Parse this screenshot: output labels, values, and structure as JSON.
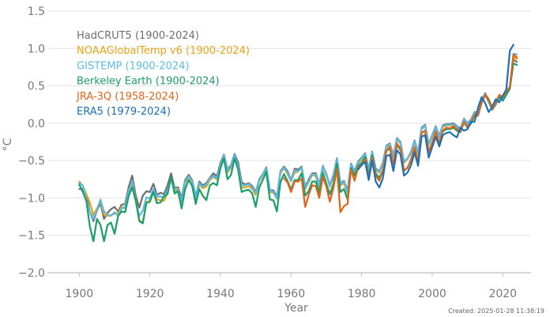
{
  "chart_data": {
    "type": "line",
    "title": "",
    "xlabel": "Year",
    "ylabel": "°C",
    "xlim": [
      1895,
      2028
    ],
    "ylim": [
      -2.0,
      1.5
    ],
    "x_ticks": [
      "1900",
      "1920",
      "1940",
      "1960",
      "1980",
      "2000",
      "2020"
    ],
    "y_ticks": [
      "1.5",
      "1.0",
      "0.5",
      "0.0",
      "−0.5",
      "−1.0",
      "−1.5",
      "−2.0"
    ],
    "grid": "horizontal",
    "legend_position": "top-left",
    "footer": "Created: 2025-01-28 11:38:19",
    "series": [
      {
        "name": "HadCRUT5 (1900-2024)",
        "color": "#6e6e6e",
        "x_start": 1900,
        "values": [
          -0.88,
          -0.88,
          -0.96,
          -1.18,
          -1.31,
          -1.17,
          -1.07,
          -1.28,
          -1.2,
          -1.15,
          -1.12,
          -1.18,
          -1.09,
          -1.08,
          -0.85,
          -0.7,
          -0.97,
          -1.13,
          -0.97,
          -0.91,
          -0.92,
          -0.81,
          -0.96,
          -0.93,
          -0.95,
          -0.83,
          -0.67,
          -0.86,
          -0.86,
          -1.0,
          -0.76,
          -0.69,
          -0.76,
          -0.98,
          -0.78,
          -0.83,
          -0.8,
          -0.73,
          -0.67,
          -0.71,
          -0.53,
          -0.42,
          -0.62,
          -0.56,
          -0.41,
          -0.52,
          -0.79,
          -0.82,
          -0.8,
          -0.84,
          -0.92,
          -0.75,
          -0.68,
          -0.59,
          -0.89,
          -0.9,
          -0.98,
          -0.64,
          -0.58,
          -0.64,
          -0.76,
          -0.61,
          -0.62,
          -0.58,
          -0.85,
          -0.75,
          -0.67,
          -0.67,
          -0.82,
          -0.57,
          -0.68,
          -0.83,
          -0.69,
          -0.47,
          -0.8,
          -0.77,
          -0.9,
          -0.54,
          -0.64,
          -0.51,
          -0.46,
          -0.4,
          -0.61,
          -0.38,
          -0.61,
          -0.64,
          -0.53,
          -0.3,
          -0.27,
          -0.43,
          -0.2,
          -0.25,
          -0.51,
          -0.47,
          -0.38,
          -0.23,
          -0.39,
          -0.06,
          -0.02,
          -0.28,
          -0.16,
          -0.04,
          -0.17,
          -0.03,
          -0.01,
          -0.01,
          0.0,
          -0.04,
          -0.07,
          0.06,
          0.0,
          0.05,
          0.15,
          0.14,
          0.3,
          0.4,
          0.32,
          0.22,
          0.28,
          0.37,
          0.33,
          0.4,
          0.48,
          0.85,
          0.82
        ]
      },
      {
        "name": "NOAAGlobalTemp v6 (1900-2024)",
        "color": "#e8a317",
        "x_start": 1900,
        "values": [
          -0.78,
          -0.84,
          -0.95,
          -1.06,
          -1.23,
          -1.14,
          -1.04,
          -1.22,
          -1.24,
          -1.23,
          -1.21,
          -1.2,
          -1.12,
          -1.14,
          -0.96,
          -0.82,
          -1.03,
          -1.3,
          -1.33,
          -1.05,
          -1.06,
          -0.91,
          -1.02,
          -1.03,
          -1.04,
          -0.93,
          -0.73,
          -0.92,
          -0.88,
          -1.05,
          -0.8,
          -0.72,
          -0.79,
          -1.05,
          -0.82,
          -0.87,
          -0.85,
          -0.76,
          -0.72,
          -0.75,
          -0.58,
          -0.44,
          -0.66,
          -0.6,
          -0.44,
          -0.58,
          -0.86,
          -0.86,
          -0.84,
          -0.88,
          -0.96,
          -0.78,
          -0.7,
          -0.62,
          -0.92,
          -0.93,
          -1.01,
          -0.67,
          -0.6,
          -0.68,
          -0.78,
          -0.66,
          -0.65,
          -0.6,
          -0.88,
          -0.79,
          -0.69,
          -0.71,
          -0.86,
          -0.59,
          -0.7,
          -0.85,
          -0.72,
          -0.5,
          -0.83,
          -0.8,
          -0.94,
          -0.57,
          -0.66,
          -0.54,
          -0.48,
          -0.42,
          -0.63,
          -0.4,
          -0.63,
          -0.66,
          -0.55,
          -0.33,
          -0.3,
          -0.45,
          -0.22,
          -0.27,
          -0.53,
          -0.48,
          -0.4,
          -0.26,
          -0.41,
          -0.08,
          -0.04,
          -0.29,
          -0.18,
          -0.06,
          -0.19,
          -0.05,
          -0.03,
          -0.03,
          -0.02,
          -0.06,
          -0.09,
          0.04,
          -0.02,
          0.03,
          0.13,
          0.12,
          0.29,
          0.38,
          0.31,
          0.2,
          0.27,
          0.36,
          0.31,
          0.39,
          0.47,
          0.88,
          0.86
        ]
      },
      {
        "name": "GISTEMP (1900-2024)",
        "color": "#5bbbe8",
        "x_start": 1900,
        "values": [
          -0.8,
          -0.83,
          -1.02,
          -1.18,
          -1.28,
          -1.16,
          -1.02,
          -1.18,
          -1.22,
          -1.24,
          -1.19,
          -1.24,
          -1.14,
          -1.12,
          -0.9,
          -0.78,
          -1.05,
          -1.24,
          -1.17,
          -0.99,
          -1.01,
          -0.88,
          -0.98,
          -0.98,
          -0.99,
          -0.89,
          -0.74,
          -0.88,
          -0.9,
          -1.03,
          -0.78,
          -0.71,
          -0.77,
          -1.0,
          -0.8,
          -0.85,
          -0.82,
          -0.74,
          -0.7,
          -0.74,
          -0.56,
          -0.43,
          -0.64,
          -0.58,
          -0.42,
          -0.57,
          -0.83,
          -0.83,
          -0.81,
          -0.86,
          -0.93,
          -0.76,
          -0.69,
          -0.6,
          -0.9,
          -0.92,
          -1.0,
          -0.65,
          -0.59,
          -0.66,
          -0.77,
          -0.63,
          -0.64,
          -0.59,
          -0.87,
          -0.77,
          -0.68,
          -0.69,
          -0.84,
          -0.58,
          -0.69,
          -0.84,
          -0.7,
          -0.48,
          -0.81,
          -0.78,
          -0.92,
          -0.55,
          -0.65,
          -0.52,
          -0.47,
          -0.41,
          -0.62,
          -0.39,
          -0.62,
          -0.65,
          -0.54,
          -0.31,
          -0.28,
          -0.44,
          -0.21,
          -0.26,
          -0.52,
          -0.47,
          -0.39,
          -0.24,
          -0.4,
          -0.07,
          -0.03,
          -0.28,
          -0.17,
          -0.05,
          -0.18,
          -0.04,
          -0.02,
          -0.02,
          -0.01,
          -0.05,
          -0.08,
          0.05,
          -0.01,
          0.04,
          0.14,
          0.13,
          0.3,
          0.39,
          0.32,
          0.21,
          0.28,
          0.37,
          0.32,
          0.4,
          0.48,
          0.93,
          0.92
        ]
      },
      {
        "name": "Berkeley Earth (1900-2024)",
        "color": "#1a9e6a",
        "x_start": 1900,
        "values": [
          -0.82,
          -0.92,
          -1.04,
          -1.38,
          -1.58,
          -1.28,
          -1.36,
          -1.58,
          -1.36,
          -1.33,
          -1.48,
          -1.24,
          -1.18,
          -1.19,
          -0.97,
          -0.86,
          -1.04,
          -1.31,
          -1.34,
          -1.07,
          -1.04,
          -0.92,
          -1.07,
          -1.06,
          -0.98,
          -0.95,
          -0.72,
          -0.94,
          -0.91,
          -1.14,
          -0.88,
          -0.76,
          -0.84,
          -1.08,
          -0.88,
          -0.97,
          -1.03,
          -0.83,
          -0.8,
          -0.83,
          -0.6,
          -0.47,
          -0.75,
          -0.69,
          -0.47,
          -0.62,
          -0.92,
          -0.9,
          -0.89,
          -0.94,
          -1.12,
          -0.86,
          -0.76,
          -0.65,
          -1.02,
          -1.03,
          -1.18,
          -0.79,
          -0.68,
          -0.77,
          -0.89,
          -0.76,
          -0.76,
          -0.67,
          -0.97,
          -0.91,
          -0.78,
          -0.78,
          -0.93,
          -0.66,
          -0.81,
          -0.95,
          -0.81,
          -0.54,
          -0.92,
          -0.88,
          -1.02,
          -0.6,
          -0.7,
          -0.57,
          -0.53,
          -0.45,
          -0.71,
          -0.43,
          -0.67,
          -0.73,
          -0.63,
          -0.37,
          -0.34,
          -0.55,
          -0.29,
          -0.36,
          -0.64,
          -0.59,
          -0.5,
          -0.33,
          -0.52,
          -0.13,
          -0.1,
          -0.38,
          -0.26,
          -0.12,
          -0.27,
          -0.11,
          -0.08,
          -0.08,
          -0.06,
          -0.1,
          -0.12,
          0.01,
          -0.06,
          0.0,
          0.1,
          0.1,
          0.28,
          0.38,
          0.29,
          0.18,
          0.25,
          0.35,
          0.3,
          0.38,
          0.46,
          0.8,
          0.78
        ]
      },
      {
        "name": "JRA-3Q (1958-2024)",
        "color": "#e0651b",
        "x_start": 1958,
        "values": [
          -0.74,
          -0.79,
          -0.92,
          -0.78,
          -0.78,
          -0.74,
          -1.12,
          -0.96,
          -0.83,
          -0.84,
          -1.0,
          -0.72,
          -0.85,
          -1.05,
          -0.87,
          -0.61,
          -1.19,
          -1.11,
          -1.08,
          -0.62,
          -0.77,
          -0.59,
          -0.56,
          -0.48,
          -0.74,
          -0.46,
          -0.7,
          -0.77,
          -0.64,
          -0.37,
          -0.32,
          -0.55,
          -0.27,
          -0.34,
          -0.63,
          -0.6,
          -0.48,
          -0.32,
          -0.51,
          -0.13,
          -0.1,
          -0.39,
          -0.26,
          -0.11,
          -0.26,
          -0.1,
          -0.06,
          -0.07,
          -0.04,
          -0.08,
          -0.11,
          0.02,
          -0.05,
          0.01,
          0.12,
          0.11,
          0.27,
          0.38,
          0.32,
          0.19,
          0.27,
          0.38,
          0.35,
          0.42,
          0.49,
          0.92,
          0.88
        ]
      },
      {
        "name": "ERA5 (1979-2024)",
        "color": "#1f6fb5",
        "x_start": 1979,
        "values": [
          -0.62,
          -0.56,
          -0.52,
          -0.76,
          -0.5,
          -0.78,
          -0.86,
          -0.74,
          -0.44,
          -0.42,
          -0.64,
          -0.36,
          -0.42,
          -0.7,
          -0.66,
          -0.56,
          -0.39,
          -0.57,
          -0.18,
          -0.16,
          -0.46,
          -0.32,
          -0.18,
          -0.31,
          -0.16,
          -0.13,
          -0.12,
          -0.16,
          -0.19,
          -0.06,
          -0.1,
          -0.08,
          0.02,
          0.02,
          0.21,
          0.35,
          0.27,
          0.15,
          0.22,
          0.32,
          0.28,
          0.37,
          0.45,
          0.97,
          1.05
        ]
      }
    ]
  }
}
